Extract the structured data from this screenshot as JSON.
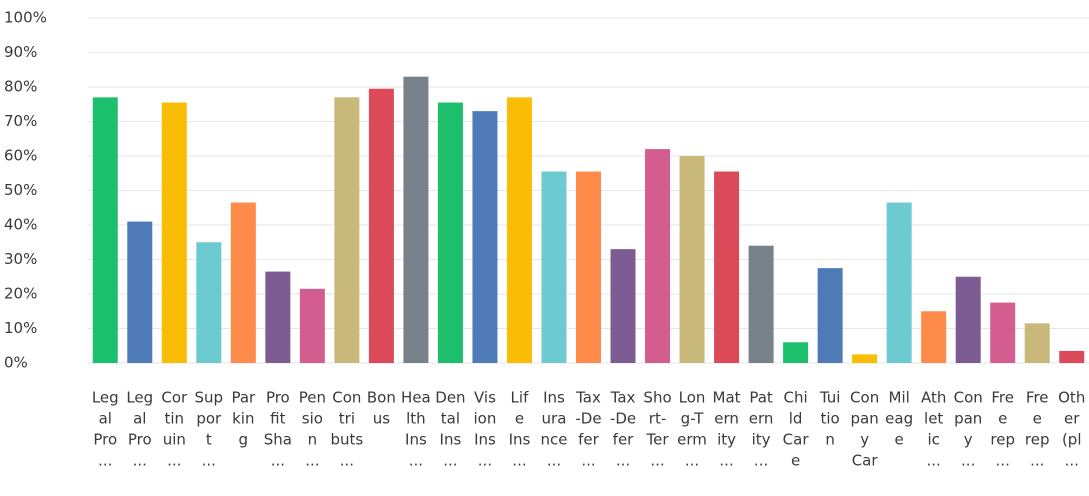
{
  "chart_data": {
    "type": "bar",
    "categories": [
      [
        "Leg",
        "al",
        "Pro",
        "..."
      ],
      [
        "Leg",
        "al",
        "Pro",
        "..."
      ],
      [
        "Cor",
        "tin",
        "uin",
        "..."
      ],
      [
        "Sup",
        "por",
        "t",
        "..."
      ],
      [
        "Par",
        "kin",
        "g"
      ],
      [
        "Pro",
        "fit",
        "Sha",
        "..."
      ],
      [
        "Pen",
        "sio",
        "n",
        "..."
      ],
      [
        "Con",
        "tri",
        "buts",
        "..."
      ],
      [
        "Bon",
        "us"
      ],
      [
        "Hea",
        "lth",
        "Ins",
        "..."
      ],
      [
        "Den",
        "tal",
        "Ins",
        "..."
      ],
      [
        "Vis",
        "ion",
        "Ins",
        "..."
      ],
      [
        "Lif",
        "e",
        "Ins",
        "..."
      ],
      [
        "Ins",
        "ura",
        "nce",
        "..."
      ],
      [
        "Tax",
        "-De",
        "fer",
        "..."
      ],
      [
        "Tax",
        "-De",
        "fer",
        "..."
      ],
      [
        "Sho",
        "rt-",
        "Ter",
        "..."
      ],
      [
        "Lon",
        "g-T",
        "erm",
        "..."
      ],
      [
        "Mat",
        "ern",
        "ity",
        "..."
      ],
      [
        "Pat",
        "ern",
        "ity",
        "..."
      ],
      [
        "Chi",
        "ld",
        "Car",
        "e"
      ],
      [
        "Tui",
        "tio",
        "n"
      ],
      [
        "Con",
        "pan",
        "y",
        "Car"
      ],
      [
        "Mil",
        "eag",
        "e"
      ],
      [
        "Ath",
        "let",
        "ic",
        "..."
      ],
      [
        "Con",
        "pan",
        "y",
        "..."
      ],
      [
        "Fre",
        "e",
        "rep",
        "..."
      ],
      [
        "Fre",
        "e",
        "rep",
        "..."
      ],
      [
        "Oth",
        "er",
        "(pl",
        "..."
      ]
    ],
    "values": [
      77,
      41,
      75.5,
      35,
      46.5,
      26.5,
      21.5,
      77,
      79.5,
      83,
      75.5,
      73,
      77,
      55.5,
      55.5,
      33,
      62,
      60,
      55.5,
      34,
      6,
      27.5,
      2.5,
      46.5,
      15,
      25,
      17.5,
      11.5,
      3.5
    ],
    "colors": [
      "#1cbf6b",
      "#4f7ab8",
      "#fbbc05",
      "#6ccbd0",
      "#ff8b4a",
      "#7d5c93",
      "#d45d8f",
      "#c8b87a",
      "#dc4a5a",
      "#78828a",
      "#1cbf6b",
      "#4f7ab8",
      "#fbbc05",
      "#6ccbd0",
      "#ff8b4a",
      "#7d5c93",
      "#d45d8f",
      "#c8b87a",
      "#dc4a5a",
      "#78828a",
      "#1cbf6b",
      "#4f7ab8",
      "#fbbc05",
      "#6ccbd0",
      "#ff8b4a",
      "#7d5c93",
      "#d45d8f",
      "#c8b87a",
      "#dc4a5a"
    ],
    "ylim": [
      0,
      100
    ],
    "yticks": [
      {
        "value": 0,
        "label": "0%"
      },
      {
        "value": 10,
        "label": "10%"
      },
      {
        "value": 20,
        "label": "20%"
      },
      {
        "value": 30,
        "label": "30%"
      },
      {
        "value": 40,
        "label": "40%"
      },
      {
        "value": 50,
        "label": "50%"
      },
      {
        "value": 60,
        "label": "60%"
      },
      {
        "value": 70,
        "label": "70%"
      },
      {
        "value": 80,
        "label": "80%"
      },
      {
        "value": 90,
        "label": "90%"
      },
      {
        "value": 100,
        "label": "100%"
      }
    ],
    "grid": true
  }
}
